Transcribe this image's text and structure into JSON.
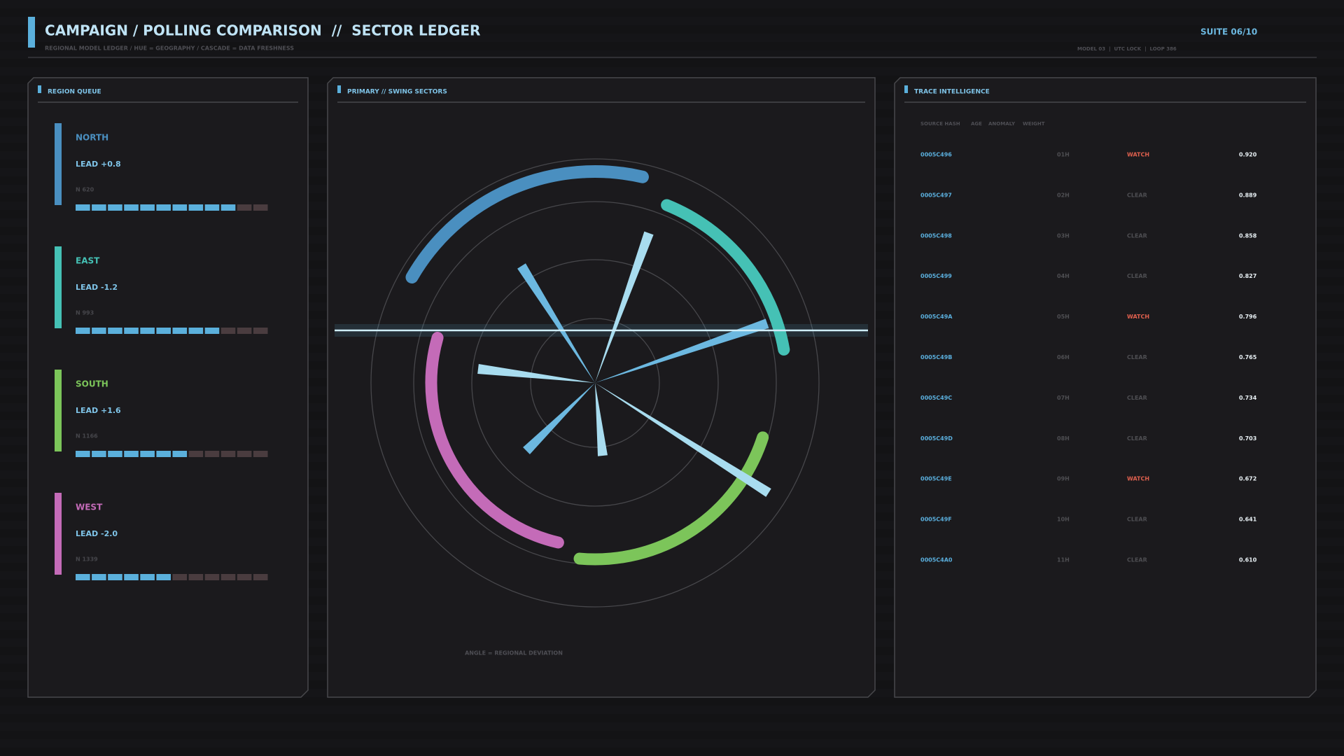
{
  "header": {
    "title": "CAMPAIGN / POLLING COMPARISON  //  SECTOR LEDGER",
    "subtitle": "REGIONAL MODEL LEDGER / HUE = GEOGRAPHY / CASCADE = DATA FRESHNESS",
    "suite": "SUITE 06/10",
    "meta": "MODEL 03  |  UTC LOCK  |  LOOP 386"
  },
  "region_queue": {
    "title": "REGION QUEUE",
    "regions": [
      {
        "name": "NORTH",
        "lead": "LEAD +0.8",
        "n": "N 620",
        "color": "#4a8fc0",
        "filled": 10,
        "segments": 12
      },
      {
        "name": "EAST",
        "lead": "LEAD -1.2",
        "n": "N 993",
        "color": "#45c1b5",
        "filled": 9,
        "segments": 12
      },
      {
        "name": "SOUTH",
        "lead": "LEAD +1.6",
        "n": "N 1166",
        "color": "#7cc55a",
        "filled": 7,
        "segments": 12
      },
      {
        "name": "WEST",
        "lead": "LEAD -2.0",
        "n": "N 1339",
        "color": "#c46bb8",
        "filled": 6,
        "segments": 12
      }
    ]
  },
  "swing_sectors": {
    "title": "PRIMARY // SWING SECTORS",
    "caption": "ANGLE = REGIONAL DEVIATION"
  },
  "trace": {
    "title": "TRACE INTELLIGENCE",
    "columns": [
      "SOURCE HASH",
      "AGE",
      "ANOMALY",
      "WEIGHT"
    ],
    "rows": [
      {
        "hash": "0005C496",
        "age": "01H",
        "status": "WATCH",
        "weight": "0.920",
        "status_color": "#e0604e"
      },
      {
        "hash": "0005C497",
        "age": "02H",
        "status": "CLEAR",
        "weight": "0.889",
        "status_color": "#4e4e52"
      },
      {
        "hash": "0005C498",
        "age": "03H",
        "status": "CLEAR",
        "weight": "0.858",
        "status_color": "#4e4e52"
      },
      {
        "hash": "0005C499",
        "age": "04H",
        "status": "CLEAR",
        "weight": "0.827",
        "status_color": "#4e4e52"
      },
      {
        "hash": "0005C49A",
        "age": "05H",
        "status": "WATCH",
        "weight": "0.796",
        "status_color": "#e0604e"
      },
      {
        "hash": "0005C49B",
        "age": "06H",
        "status": "CLEAR",
        "weight": "0.765",
        "status_color": "#4e4e52"
      },
      {
        "hash": "0005C49C",
        "age": "07H",
        "status": "CLEAR",
        "weight": "0.734",
        "status_color": "#4e4e52"
      },
      {
        "hash": "0005C49D",
        "age": "08H",
        "status": "CLEAR",
        "weight": "0.703",
        "status_color": "#4e4e52"
      },
      {
        "hash": "0005C49E",
        "age": "09H",
        "status": "WATCH",
        "weight": "0.672",
        "status_color": "#e0604e"
      },
      {
        "hash": "0005C49F",
        "age": "10H",
        "status": "CLEAR",
        "weight": "0.641",
        "status_color": "#4e4e52"
      },
      {
        "hash": "0005C4A0",
        "age": "11H",
        "status": "CLEAR",
        "weight": "0.610",
        "status_color": "#4e4e52"
      }
    ]
  }
}
